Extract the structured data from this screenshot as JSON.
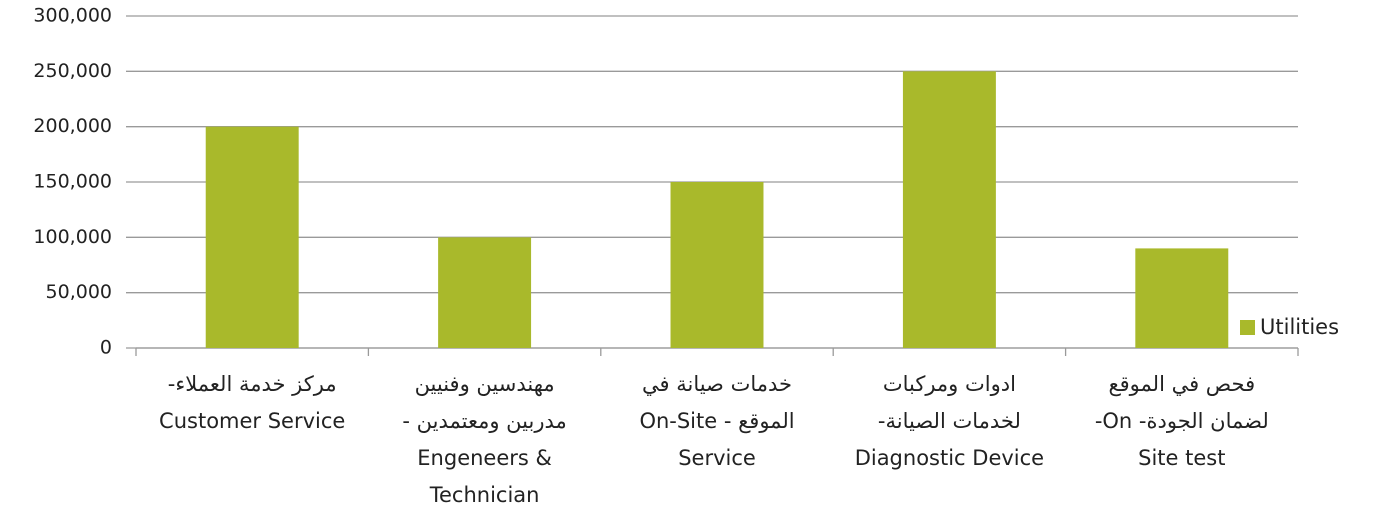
{
  "chart_data": {
    "type": "bar",
    "categories": [
      [
        "مركز خدمة العملاء-",
        "Customer Service"
      ],
      [
        "مهندسين وفنيين",
        "مدربين ومعتمدين -",
        "Engeneers &",
        "Technician"
      ],
      [
        "خدمات صيانة في",
        "الموقع -  On-Site",
        "Service"
      ],
      [
        "ادوات ومركبات",
        "لخدمات الصيانة-",
        "Diagnostic Device"
      ],
      [
        "فحص في الموقع",
        "لضمان الجودة- On-",
        "Site test"
      ]
    ],
    "series": [
      {
        "name": "Utilities",
        "color": "#a9b92b",
        "values": [
          200000,
          100000,
          150000,
          250000,
          90000
        ]
      }
    ],
    "ylim": [
      0,
      300000
    ],
    "yticks": [
      {
        "value": 0,
        "label": "0"
      },
      {
        "value": 50000,
        "label": "50,000"
      },
      {
        "value": 100000,
        "label": "100,000"
      },
      {
        "value": 150000,
        "label": "150,000"
      },
      {
        "value": 200000,
        "label": "200,000"
      },
      {
        "value": 250000,
        "label": "250,000"
      },
      {
        "value": 300000,
        "label": "300,000"
      }
    ],
    "grid": true,
    "legend": "right"
  }
}
